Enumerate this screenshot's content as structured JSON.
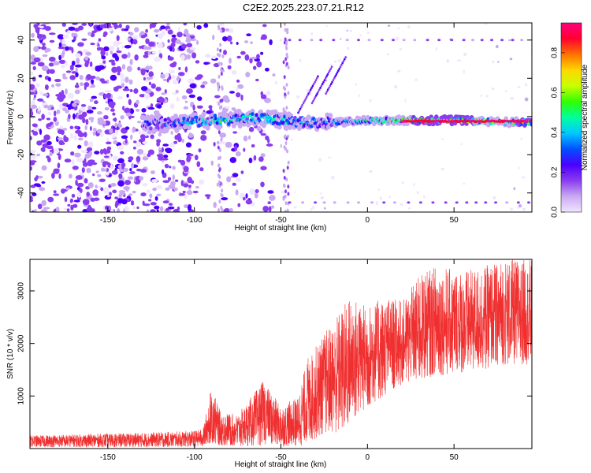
{
  "title": "C2E2.2025.223.07.21.R12",
  "chart_data": [
    {
      "type": "heatmap",
      "xlabel": "Height of straight line (km)",
      "ylabel": "Frequency (Hz)",
      "xlim": [
        -195,
        95
      ],
      "ylim": [
        -50,
        49
      ],
      "x_ticks": [
        -150,
        -100,
        -50,
        0,
        50
      ],
      "y_ticks": [
        -40,
        -20,
        0,
        20,
        40
      ],
      "colorbar": {
        "label": "Normalized spectral amplitude",
        "range": [
          0,
          0.95
        ],
        "ticks": [
          "0.0",
          "0.2",
          "0.4",
          "0.6",
          "0.8"
        ],
        "colors": [
          "#f0e6ff",
          "#c9a9f2",
          "#8a3cf0",
          "#4b00ff",
          "#0050ff",
          "#00c8ff",
          "#00ffa0",
          "#30ff00",
          "#c8ff00",
          "#ffd700",
          "#ff7000",
          "#ff0030",
          "#ff0080"
        ]
      },
      "features": [
        {
          "name": "main signal",
          "x": [
            -130,
            -110,
            -90,
            -70,
            -55,
            -40,
            -20,
            0,
            20,
            40,
            60,
            80,
            95
          ],
          "y": [
            -4,
            -3.5,
            -2,
            -1,
            -1,
            -3,
            -3,
            -2,
            -2,
            -2,
            -2,
            -3,
            -3
          ],
          "peak_amplitude": [
            0.3,
            0.4,
            0.55,
            0.5,
            0.6,
            0.45,
            0.4,
            0.6,
            0.75,
            0.9,
            0.8,
            0.7,
            0.9
          ]
        },
        {
          "name": "harmonic line upper",
          "x": [
            -45,
            95
          ],
          "y": [
            40,
            40
          ]
        },
        {
          "name": "harmonic line lower",
          "x": [
            -45,
            95
          ],
          "y": [
            -45,
            -45
          ]
        }
      ]
    },
    {
      "type": "line",
      "xlabel": "Height of straight line (km)",
      "ylabel": "SNR (10 * v/v)",
      "xlim": [
        -195,
        95
      ],
      "ylim": [
        0,
        3600
      ],
      "x_ticks": [
        -150,
        -100,
        -50,
        0,
        50
      ],
      "y_ticks": [
        1000,
        2000,
        3000
      ],
      "color": "#f03030",
      "envelope": {
        "x": [
          -195,
          -160,
          -130,
          -100,
          -95,
          -90,
          -85,
          -75,
          -60,
          -50,
          -40,
          -35,
          -25,
          -15,
          -10,
          0,
          10,
          20,
          30,
          40,
          50,
          60,
          70,
          80,
          95
        ],
        "low": [
          30,
          30,
          30,
          30,
          40,
          80,
          60,
          40,
          60,
          40,
          40,
          80,
          300,
          300,
          500,
          800,
          1000,
          1200,
          1300,
          1400,
          1400,
          1500,
          1500,
          1600,
          1600
        ],
        "high": [
          250,
          280,
          300,
          340,
          380,
          1200,
          700,
          650,
          1300,
          800,
          1000,
          1700,
          2200,
          2700,
          2900,
          2700,
          2900,
          2800,
          3300,
          3500,
          3400,
          3400,
          3500,
          3600,
          3600
        ]
      }
    }
  ]
}
